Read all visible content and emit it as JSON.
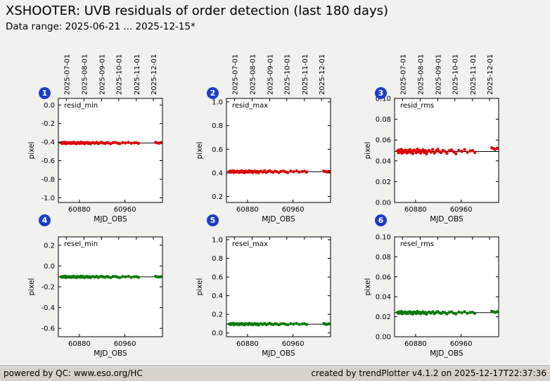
{
  "page": {
    "title": "XSHOOTER: UVB residuals of order detection (last 180 days)",
    "subtitle": "Data range: 2025-06-21 ... 2025-12-15*",
    "background": "#f1f1ee",
    "badge_color": "#1a3cd0"
  },
  "footer": {
    "left": "powered by QC: www.eso.org/HC",
    "right": "created by trendPlotter v4.1.2 on 2025-12-17T22:37:36"
  },
  "chart_data": {
    "type": "scatter",
    "title": "XSHOOTER: UVB residuals of order detection (last 180 days)",
    "xlabel": "MJD_OBS",
    "ylabel": "pixel",
    "xlim": [
      60843,
      61026
    ],
    "xticks": [
      60880,
      60960
    ],
    "date_ticks": [
      {
        "mjd": 60857,
        "label": "2025-07-01"
      },
      {
        "mjd": 60888,
        "label": "2025-08-01"
      },
      {
        "mjd": 60919,
        "label": "2025-09-01"
      },
      {
        "mjd": 60949,
        "label": "2025-10-01"
      },
      {
        "mjd": 60980,
        "label": "2025-11-01"
      },
      {
        "mjd": 61010,
        "label": "2025-12-01"
      }
    ],
    "x_mjd": [
      60848,
      60850,
      60851,
      60853,
      60855,
      60856,
      60858,
      60860,
      60862,
      60863,
      60865,
      60867,
      60868,
      60870,
      60872,
      60874,
      60875,
      60877,
      60879,
      60881,
      60883,
      60885,
      60887,
      60889,
      60891,
      60893,
      60895,
      60897,
      60899,
      60901,
      60904,
      60907,
      60910,
      60913,
      60916,
      60919,
      60922,
      60925,
      60928,
      60931,
      60935,
      60939,
      60943,
      60947,
      60951,
      60956,
      60961,
      60966,
      60971,
      60976,
      60980,
      60984,
      61014,
      61017,
      61020,
      61023
    ],
    "panels": [
      {
        "number": "1",
        "name": "resid_min",
        "color": "#dd0000",
        "ylim": [
          -1.05,
          0.07
        ],
        "yticks": [
          0.0,
          -0.2,
          -0.4,
          -0.6,
          -0.8,
          -1.0
        ],
        "ydec": 1,
        "mean": -0.41,
        "y": [
          -0.408,
          -0.415,
          -0.404,
          -0.411,
          -0.402,
          -0.417,
          -0.407,
          -0.413,
          -0.405,
          -0.41,
          -0.416,
          -0.406,
          -0.412,
          -0.403,
          -0.414,
          -0.409,
          -0.418,
          -0.405,
          -0.408,
          -0.415,
          -0.401,
          -0.412,
          -0.406,
          -0.417,
          -0.409,
          -0.404,
          -0.414,
          -0.407,
          -0.419,
          -0.41,
          -0.405,
          -0.413,
          -0.403,
          -0.416,
          -0.408,
          -0.402,
          -0.411,
          -0.415,
          -0.406,
          -0.409,
          -0.417,
          -0.407,
          -0.404,
          -0.412,
          -0.418,
          -0.405,
          -0.41,
          -0.403,
          -0.413,
          -0.408,
          -0.406,
          -0.414,
          -0.404,
          -0.409,
          -0.412,
          -0.407
        ]
      },
      {
        "number": "2",
        "name": "resid_max",
        "color": "#dd0000",
        "ylim": [
          0.15,
          1.03
        ],
        "yticks": [
          1.0,
          0.8,
          0.6,
          0.4,
          0.2
        ],
        "ydec": 1,
        "mean": 0.41,
        "y": [
          0.412,
          0.405,
          0.416,
          0.409,
          0.418,
          0.403,
          0.413,
          0.407,
          0.415,
          0.41,
          0.404,
          0.414,
          0.408,
          0.417,
          0.406,
          0.411,
          0.402,
          0.415,
          0.412,
          0.405,
          0.419,
          0.408,
          0.414,
          0.403,
          0.411,
          0.416,
          0.406,
          0.413,
          0.401,
          0.41,
          0.415,
          0.407,
          0.417,
          0.404,
          0.412,
          0.418,
          0.409,
          0.405,
          0.414,
          0.411,
          0.403,
          0.413,
          0.416,
          0.408,
          0.402,
          0.415,
          0.41,
          0.417,
          0.407,
          0.412,
          0.414,
          0.406,
          0.416,
          0.411,
          0.408,
          0.413
        ]
      },
      {
        "number": "3",
        "name": "resid_rms",
        "color": "#dd0000",
        "ylim": [
          0.0,
          0.1
        ],
        "yticks": [
          0.1,
          0.08,
          0.06,
          0.04,
          0.02,
          0.0
        ],
        "ydec": 2,
        "mean": 0.049,
        "y": [
          0.0495,
          0.0478,
          0.0505,
          0.0488,
          0.051,
          0.0473,
          0.0498,
          0.0483,
          0.0502,
          0.049,
          0.0475,
          0.05,
          0.0485,
          0.0508,
          0.048,
          0.0493,
          0.047,
          0.0502,
          0.0495,
          0.0478,
          0.0512,
          0.0486,
          0.05,
          0.0474,
          0.0492,
          0.0506,
          0.0481,
          0.0497,
          0.0468,
          0.049,
          0.0501,
          0.0483,
          0.0509,
          0.0476,
          0.0494,
          0.0511,
          0.0488,
          0.0479,
          0.05,
          0.0492,
          0.0472,
          0.0497,
          0.0505,
          0.0485,
          0.0469,
          0.0501,
          0.049,
          0.0508,
          0.0482,
          0.0495,
          0.0499,
          0.048,
          0.0525,
          0.0518,
          0.051,
          0.052
        ]
      },
      {
        "number": "4",
        "name": "resel_min",
        "color": "#0a7a0a",
        "ylim": [
          -0.68,
          0.28
        ],
        "yticks": [
          0.2,
          0.0,
          -0.2,
          -0.4,
          -0.6
        ],
        "ydec": 1,
        "mean": -0.105,
        "y": [
          -0.103,
          -0.109,
          -0.1,
          -0.106,
          -0.098,
          -0.111,
          -0.102,
          -0.108,
          -0.101,
          -0.105,
          -0.11,
          -0.101,
          -0.107,
          -0.099,
          -0.108,
          -0.104,
          -0.112,
          -0.101,
          -0.103,
          -0.109,
          -0.097,
          -0.107,
          -0.102,
          -0.111,
          -0.104,
          -0.1,
          -0.108,
          -0.103,
          -0.112,
          -0.105,
          -0.101,
          -0.107,
          -0.099,
          -0.11,
          -0.103,
          -0.098,
          -0.106,
          -0.109,
          -0.102,
          -0.104,
          -0.111,
          -0.102,
          -0.1,
          -0.107,
          -0.112,
          -0.101,
          -0.105,
          -0.099,
          -0.108,
          -0.103,
          -0.102,
          -0.108,
          -0.1,
          -0.104,
          -0.106,
          -0.103
        ]
      },
      {
        "number": "5",
        "name": "resel_max",
        "color": "#0a7a0a",
        "ylim": [
          -0.04,
          1.03
        ],
        "yticks": [
          1.0,
          0.8,
          0.6,
          0.4,
          0.2,
          0.0
        ],
        "ydec": 1,
        "mean": 0.095,
        "y": [
          0.097,
          0.09,
          0.101,
          0.094,
          0.103,
          0.088,
          0.098,
          0.092,
          0.1,
          0.095,
          0.089,
          0.099,
          0.093,
          0.102,
          0.091,
          0.096,
          0.087,
          0.1,
          0.097,
          0.09,
          0.104,
          0.093,
          0.099,
          0.088,
          0.096,
          0.101,
          0.091,
          0.098,
          0.086,
          0.095,
          0.1,
          0.092,
          0.102,
          0.089,
          0.097,
          0.103,
          0.094,
          0.09,
          0.099,
          0.096,
          0.088,
          0.098,
          0.101,
          0.093,
          0.087,
          0.1,
          0.095,
          0.102,
          0.092,
          0.097,
          0.099,
          0.091,
          0.101,
          0.096,
          0.093,
          0.098
        ]
      },
      {
        "number": "6",
        "name": "resel_rms",
        "color": "#0a7a0a",
        "ylim": [
          0.0,
          0.1
        ],
        "yticks": [
          0.1,
          0.08,
          0.06,
          0.04,
          0.02,
          0.0
        ],
        "ydec": 2,
        "mean": 0.0241,
        "y": [
          0.0243,
          0.0233,
          0.0249,
          0.0239,
          0.0252,
          0.023,
          0.0245,
          0.0236,
          0.0248,
          0.024,
          0.0231,
          0.0246,
          0.0237,
          0.0251,
          0.0234,
          0.0242,
          0.0228,
          0.0248,
          0.0243,
          0.0233,
          0.0254,
          0.0237,
          0.0246,
          0.023,
          0.0241,
          0.0249,
          0.0234,
          0.0244,
          0.0227,
          0.024,
          0.0247,
          0.0235,
          0.025,
          0.0231,
          0.0243,
          0.0252,
          0.0239,
          0.0233,
          0.0246,
          0.0242,
          0.0229,
          0.0244,
          0.0249,
          0.0236,
          0.0228,
          0.0247,
          0.024,
          0.0251,
          0.0235,
          0.0243,
          0.0245,
          0.0234,
          0.0255,
          0.0249,
          0.0244,
          0.025
        ]
      }
    ]
  }
}
